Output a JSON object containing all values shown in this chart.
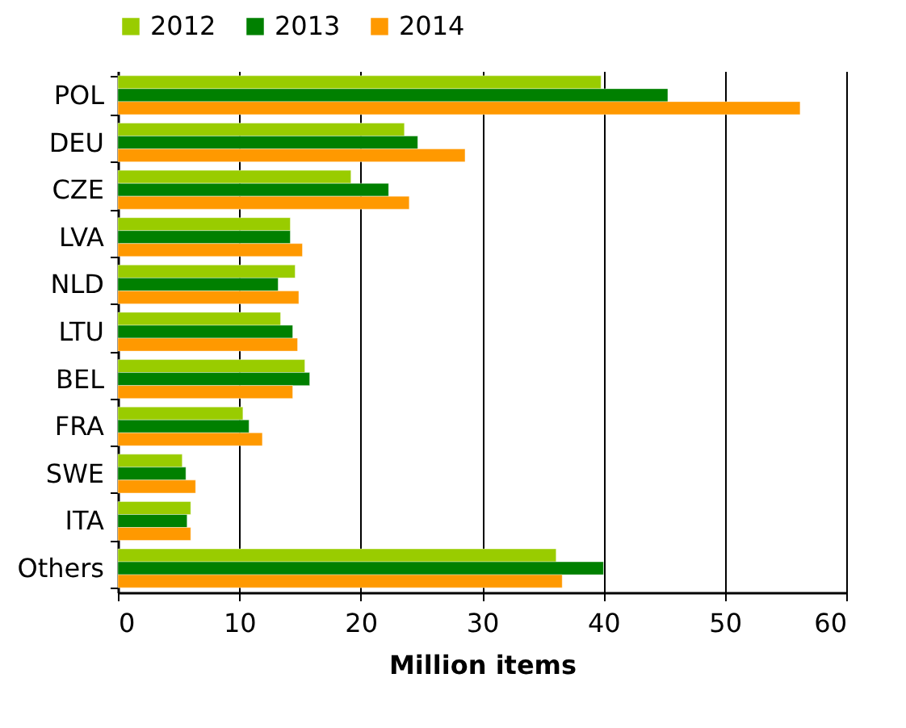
{
  "chart_data": {
    "type": "bar",
    "orientation": "horizontal",
    "xlabel": "Million items",
    "categories": [
      "POL",
      "DEU",
      "CZE",
      "LVA",
      "NLD",
      "LTU",
      "BEL",
      "FRA",
      "SWE",
      "ITA",
      "Others"
    ],
    "series": [
      {
        "name": "2012",
        "color": "#99cc00",
        "values": [
          39.8,
          23.6,
          19.2,
          14.2,
          14.6,
          13.4,
          15.4,
          10.3,
          5.3,
          6.0,
          36.1
        ]
      },
      {
        "name": "2013",
        "color": "#008000",
        "values": [
          45.3,
          24.7,
          22.3,
          14.2,
          13.2,
          14.4,
          15.8,
          10.8,
          5.6,
          5.7,
          40.0
        ]
      },
      {
        "name": "2014",
        "color": "#ff9900",
        "values": [
          56.2,
          28.6,
          24.0,
          15.2,
          14.9,
          14.8,
          14.4,
          11.9,
          6.4,
          6.0,
          36.6
        ]
      }
    ],
    "xlim": [
      0,
      60
    ],
    "xticks": [
      0,
      10,
      20,
      30,
      40,
      50,
      60
    ],
    "grid": "x",
    "legend": "top"
  }
}
